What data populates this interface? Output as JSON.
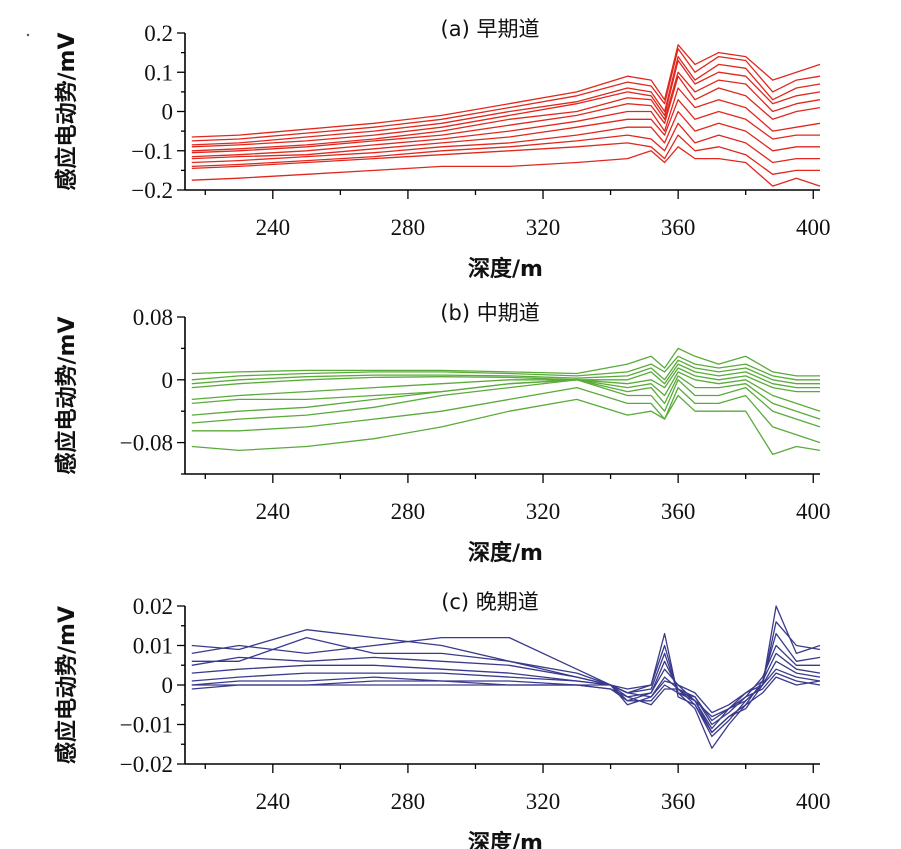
{
  "figure": {
    "panels": [
      {
        "id": "a",
        "title": "(a) 早期道",
        "ylabel": "感应电动势/mV",
        "xlabel": "深度/m",
        "color": "#e0281e",
        "xlim": [
          214,
          402
        ],
        "ylim": [
          -0.2,
          0.2
        ],
        "yticks": [
          {
            "v": 0.2,
            "label": "0.2"
          },
          {
            "v": 0.1,
            "label": "0.1"
          },
          {
            "v": 0,
            "label": "0"
          },
          {
            "v": -0.1,
            "label": "-0.1"
          },
          {
            "v": -0.2,
            "label": "-0.2"
          }
        ],
        "xticks": [
          {
            "v": 240,
            "label": "240"
          },
          {
            "v": 280,
            "label": "280"
          },
          {
            "v": 320,
            "label": "320"
          },
          {
            "v": 360,
            "label": "360"
          },
          {
            "v": 400,
            "label": "400"
          }
        ]
      },
      {
        "id": "b",
        "title": "(b) 中期道",
        "ylabel": "感应电动势/mV",
        "xlabel": "深度/m",
        "color": "#5aab3a",
        "xlim": [
          214,
          402
        ],
        "ylim": [
          -0.12,
          0.08
        ],
        "yticks": [
          {
            "v": 0.08,
            "label": "0.08"
          },
          {
            "v": 0,
            "label": "0"
          },
          {
            "v": -0.08,
            "label": "-0.08"
          }
        ],
        "xticks": [
          {
            "v": 240,
            "label": "240"
          },
          {
            "v": 280,
            "label": "280"
          },
          {
            "v": 320,
            "label": "320"
          },
          {
            "v": 360,
            "label": "360"
          },
          {
            "v": 400,
            "label": "400"
          }
        ]
      },
      {
        "id": "c",
        "title": "(c) 晚期道",
        "ylabel": "感应电动势/mV",
        "xlabel": "深度/m",
        "color": "#3a3a8c",
        "xlim": [
          214,
          402
        ],
        "ylim": [
          -0.02,
          0.02
        ],
        "yticks": [
          {
            "v": 0.02,
            "label": "0.02"
          },
          {
            "v": 0.01,
            "label": "0.01"
          },
          {
            "v": 0,
            "label": "0"
          },
          {
            "v": -0.01,
            "label": "-0.01"
          },
          {
            "v": -0.02,
            "label": "-0.02"
          }
        ],
        "xticks": [
          {
            "v": 240,
            "label": "240"
          },
          {
            "v": 280,
            "label": "280"
          },
          {
            "v": 320,
            "label": "320"
          },
          {
            "v": 360,
            "label": "360"
          },
          {
            "v": 400,
            "label": "400"
          }
        ]
      }
    ]
  },
  "chart_data": [
    {
      "type": "line",
      "title": "(a) 早期道",
      "xlabel": "深度/m",
      "ylabel": "感应电动势/mV",
      "xlim": [
        214,
        402
      ],
      "ylim": [
        -0.2,
        0.2
      ],
      "grid": false,
      "color": "#e0281e",
      "x": [
        216,
        230,
        250,
        270,
        290,
        310,
        330,
        345,
        352,
        356,
        360,
        365,
        372,
        380,
        388,
        395,
        402
      ],
      "series": [
        {
          "values": [
            -0.065,
            -0.06,
            -0.045,
            -0.03,
            -0.01,
            0.02,
            0.05,
            0.09,
            0.08,
            0.03,
            0.17,
            0.12,
            0.15,
            0.14,
            0.08,
            0.1,
            0.12
          ]
        },
        {
          "values": [
            -0.075,
            -0.07,
            -0.055,
            -0.04,
            -0.02,
            0.01,
            0.04,
            0.075,
            0.065,
            0.02,
            0.16,
            0.1,
            0.14,
            0.13,
            0.05,
            0.08,
            0.09
          ]
        },
        {
          "values": [
            -0.085,
            -0.08,
            -0.065,
            -0.05,
            -0.03,
            0.0,
            0.025,
            0.06,
            0.05,
            0.0,
            0.14,
            0.08,
            0.12,
            0.11,
            0.03,
            0.06,
            0.07
          ]
        },
        {
          "values": [
            -0.09,
            -0.085,
            -0.075,
            -0.06,
            -0.04,
            -0.01,
            0.02,
            0.05,
            0.04,
            -0.01,
            0.13,
            0.07,
            0.1,
            0.09,
            0.02,
            0.04,
            0.05
          ]
        },
        {
          "values": [
            -0.1,
            -0.095,
            -0.085,
            -0.07,
            -0.05,
            -0.02,
            0.0,
            0.035,
            0.03,
            -0.02,
            0.1,
            0.05,
            0.08,
            0.07,
            0.0,
            0.02,
            0.03
          ]
        },
        {
          "values": [
            -0.105,
            -0.1,
            -0.09,
            -0.075,
            -0.06,
            -0.035,
            -0.01,
            0.02,
            0.015,
            -0.03,
            0.09,
            0.03,
            0.06,
            0.04,
            -0.02,
            0.0,
            0.01
          ]
        },
        {
          "values": [
            -0.115,
            -0.11,
            -0.1,
            -0.085,
            -0.07,
            -0.05,
            -0.025,
            0.0,
            0.0,
            -0.05,
            0.06,
            0.01,
            0.03,
            0.01,
            -0.05,
            -0.04,
            -0.03
          ]
        },
        {
          "values": [
            -0.12,
            -0.115,
            -0.11,
            -0.095,
            -0.08,
            -0.065,
            -0.04,
            -0.02,
            -0.02,
            -0.06,
            0.03,
            -0.02,
            0.0,
            -0.02,
            -0.07,
            -0.06,
            -0.06
          ]
        },
        {
          "values": [
            -0.13,
            -0.125,
            -0.115,
            -0.105,
            -0.09,
            -0.08,
            -0.06,
            -0.04,
            -0.04,
            -0.08,
            0.0,
            -0.05,
            -0.03,
            -0.05,
            -0.1,
            -0.09,
            -0.09
          ]
        },
        {
          "values": [
            -0.14,
            -0.135,
            -0.125,
            -0.115,
            -0.1,
            -0.09,
            -0.075,
            -0.06,
            -0.07,
            -0.1,
            -0.03,
            -0.08,
            -0.06,
            -0.08,
            -0.13,
            -0.12,
            -0.12
          ]
        },
        {
          "values": [
            -0.145,
            -0.14,
            -0.13,
            -0.12,
            -0.11,
            -0.1,
            -0.09,
            -0.08,
            -0.09,
            -0.12,
            -0.06,
            -0.1,
            -0.09,
            -0.11,
            -0.16,
            -0.15,
            -0.15
          ]
        },
        {
          "values": [
            -0.175,
            -0.17,
            -0.16,
            -0.15,
            -0.14,
            -0.14,
            -0.13,
            -0.12,
            -0.1,
            -0.13,
            -0.09,
            -0.12,
            -0.12,
            -0.13,
            -0.19,
            -0.17,
            -0.19
          ]
        }
      ]
    },
    {
      "type": "line",
      "title": "(b) 中期道",
      "xlabel": "深度/m",
      "ylabel": "感应电动势/mV",
      "xlim": [
        214,
        402
      ],
      "ylim": [
        -0.12,
        0.08
      ],
      "grid": false,
      "color": "#5aab3a",
      "x": [
        216,
        230,
        250,
        270,
        290,
        310,
        330,
        345,
        352,
        356,
        360,
        365,
        372,
        380,
        388,
        395,
        402
      ],
      "series": [
        {
          "values": [
            0.008,
            0.01,
            0.012,
            0.012,
            0.012,
            0.01,
            0.008,
            0.02,
            0.03,
            0.015,
            0.04,
            0.03,
            0.02,
            0.03,
            0.01,
            0.005,
            0.005
          ]
        },
        {
          "values": [
            0.0,
            0.005,
            0.008,
            0.01,
            0.01,
            0.008,
            0.005,
            0.01,
            0.02,
            0.01,
            0.03,
            0.02,
            0.015,
            0.02,
            0.005,
            0.0,
            0.0
          ]
        },
        {
          "values": [
            -0.005,
            0.0,
            0.004,
            0.006,
            0.006,
            0.005,
            0.002,
            0.005,
            0.015,
            0.0,
            0.025,
            0.015,
            0.01,
            0.015,
            0.0,
            -0.005,
            -0.005
          ]
        },
        {
          "values": [
            -0.01,
            -0.005,
            0.0,
            0.003,
            0.004,
            0.003,
            0.0,
            0.0,
            0.01,
            -0.005,
            0.02,
            0.01,
            0.005,
            0.01,
            -0.005,
            -0.01,
            -0.01
          ]
        },
        {
          "values": [
            -0.025,
            -0.02,
            -0.015,
            -0.01,
            -0.005,
            0.0,
            0.0,
            -0.005,
            0.0,
            -0.01,
            0.015,
            0.005,
            0.0,
            0.005,
            -0.01,
            -0.015,
            -0.015
          ]
        },
        {
          "values": [
            -0.03,
            -0.025,
            -0.025,
            -0.02,
            -0.015,
            -0.005,
            0.0,
            -0.01,
            -0.005,
            -0.02,
            0.01,
            0.0,
            -0.005,
            0.0,
            -0.02,
            -0.03,
            -0.04
          ]
        },
        {
          "values": [
            -0.045,
            -0.04,
            -0.035,
            -0.025,
            -0.015,
            -0.005,
            0.0,
            -0.015,
            -0.01,
            -0.03,
            0.005,
            -0.01,
            -0.01,
            -0.005,
            -0.03,
            -0.04,
            -0.05
          ]
        },
        {
          "values": [
            -0.055,
            -0.05,
            -0.045,
            -0.035,
            -0.02,
            -0.01,
            0.0,
            -0.02,
            -0.02,
            -0.04,
            0.0,
            -0.02,
            -0.02,
            -0.01,
            -0.04,
            -0.05,
            -0.06
          ]
        },
        {
          "values": [
            -0.065,
            -0.065,
            -0.06,
            -0.05,
            -0.04,
            -0.025,
            -0.01,
            -0.03,
            -0.03,
            -0.05,
            -0.01,
            -0.03,
            -0.03,
            -0.02,
            -0.06,
            -0.07,
            -0.08
          ]
        },
        {
          "values": [
            -0.085,
            -0.09,
            -0.085,
            -0.075,
            -0.06,
            -0.04,
            -0.025,
            -0.045,
            -0.04,
            -0.05,
            -0.02,
            -0.04,
            -0.04,
            -0.04,
            -0.095,
            -0.085,
            -0.09
          ]
        }
      ]
    },
    {
      "type": "line",
      "title": "(c) 晚期道",
      "xlabel": "深度/m",
      "ylabel": "感应电动势/mV",
      "xlim": [
        214,
        402
      ],
      "ylim": [
        -0.02,
        0.02
      ],
      "grid": false,
      "color": "#3a3a8c",
      "x": [
        216,
        230,
        250,
        270,
        290,
        310,
        330,
        340,
        345,
        352,
        356,
        360,
        365,
        370,
        375,
        380,
        385,
        389,
        395,
        402
      ],
      "series": [
        {
          "values": [
            0.01,
            0.009,
            0.014,
            0.012,
            0.01,
            0.006,
            0.002,
            0.0,
            -0.001,
            0.0,
            0.01,
            -0.002,
            -0.004,
            -0.008,
            -0.006,
            -0.004,
            0.0,
            0.02,
            0.008,
            0.01
          ]
        },
        {
          "values": [
            0.008,
            0.01,
            0.008,
            0.01,
            0.012,
            0.012,
            0.004,
            0.0,
            -0.002,
            0.0,
            0.013,
            -0.003,
            -0.005,
            -0.012,
            -0.008,
            -0.006,
            0.0,
            0.016,
            0.01,
            0.009
          ]
        },
        {
          "values": [
            0.006,
            0.006,
            0.012,
            0.008,
            0.008,
            0.006,
            0.003,
            0.0,
            -0.002,
            -0.001,
            0.008,
            -0.002,
            -0.006,
            -0.016,
            -0.01,
            -0.005,
            0.001,
            0.013,
            0.006,
            0.007
          ]
        },
        {
          "values": [
            0.005,
            0.007,
            0.006,
            0.007,
            0.006,
            0.005,
            0.002,
            0.0,
            -0.003,
            -0.002,
            0.006,
            -0.001,
            -0.003,
            -0.01,
            -0.007,
            -0.003,
            0.002,
            0.01,
            0.005,
            0.005
          ]
        },
        {
          "values": [
            0.003,
            0.004,
            0.005,
            0.005,
            0.004,
            0.003,
            0.001,
            0.0,
            -0.004,
            -0.002,
            0.004,
            0.0,
            -0.004,
            -0.011,
            -0.006,
            -0.002,
            0.001,
            0.008,
            0.004,
            0.003
          ]
        },
        {
          "values": [
            0.001,
            0.002,
            0.003,
            0.003,
            0.003,
            0.002,
            0.001,
            0.0,
            -0.005,
            -0.003,
            0.002,
            -0.001,
            -0.005,
            -0.013,
            -0.009,
            -0.004,
            0.0,
            0.006,
            0.003,
            0.002
          ]
        },
        {
          "values": [
            0.0,
            0.001,
            0.001,
            0.002,
            0.001,
            0.001,
            0.0,
            0.0,
            -0.002,
            -0.003,
            0.001,
            0.0,
            -0.002,
            -0.007,
            -0.005,
            -0.002,
            0.0,
            0.004,
            0.002,
            0.001
          ]
        },
        {
          "values": [
            0.0,
            0.0,
            0.0,
            0.001,
            0.001,
            0.0,
            0.0,
            -0.001,
            -0.004,
            -0.004,
            0.0,
            -0.002,
            -0.003,
            -0.009,
            -0.006,
            -0.003,
            -0.001,
            0.003,
            0.001,
            0.0
          ]
        },
        {
          "values": [
            -0.001,
            0.0,
            0.0,
            0.0,
            0.0,
            0.0,
            0.0,
            -0.001,
            -0.003,
            -0.005,
            -0.001,
            -0.001,
            -0.004,
            -0.012,
            -0.008,
            -0.005,
            -0.002,
            0.002,
            0.0,
            0.001
          ]
        }
      ]
    }
  ]
}
